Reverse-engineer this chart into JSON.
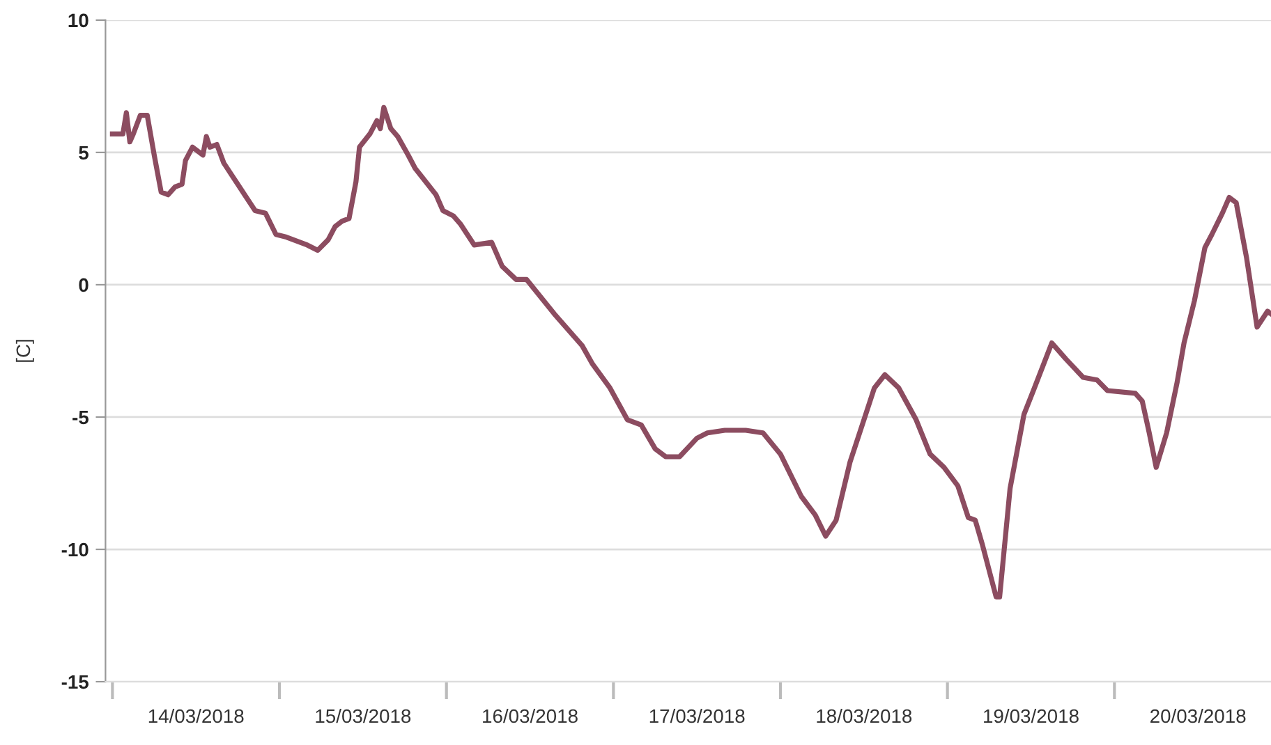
{
  "chart_data": {
    "type": "line",
    "ylabel": "[C]",
    "xlim": [
      "2018-03-13T23:00",
      "2018-03-20T22:30"
    ],
    "xticks": [
      {
        "value": "2018-03-14T00:00",
        "label": null
      },
      {
        "value": "2018-03-14T12:00",
        "label": "14/03/2018"
      },
      {
        "value": "2018-03-15T00:00",
        "label": null
      },
      {
        "value": "2018-03-15T12:00",
        "label": "15/03/2018"
      },
      {
        "value": "2018-03-16T00:00",
        "label": null
      },
      {
        "value": "2018-03-16T12:00",
        "label": "16/03/2018"
      },
      {
        "value": "2018-03-17T00:00",
        "label": null
      },
      {
        "value": "2018-03-17T12:00",
        "label": "17/03/2018"
      },
      {
        "value": "2018-03-18T00:00",
        "label": null
      },
      {
        "value": "2018-03-18T12:00",
        "label": "18/03/2018"
      },
      {
        "value": "2018-03-19T00:00",
        "label": null
      },
      {
        "value": "2018-03-19T12:00",
        "label": "19/03/2018"
      },
      {
        "value": "2018-03-20T00:00",
        "label": null
      },
      {
        "value": "2018-03-20T12:00",
        "label": "20/03/2018"
      }
    ],
    "ylim": [
      -15,
      10
    ],
    "yticks": [
      -15,
      -10,
      -5,
      0,
      5,
      10
    ],
    "grid": "y",
    "marker": "none",
    "line_style": "solid",
    "x": [
      "2018-03-14T00:00",
      "2018-03-14T01:30",
      "2018-03-14T02:00",
      "2018-03-14T02:30",
      "2018-03-14T03:00",
      "2018-03-14T04:00",
      "2018-03-14T05:00",
      "2018-03-14T06:00",
      "2018-03-14T07:00",
      "2018-03-14T08:00",
      "2018-03-14T09:00",
      "2018-03-14T10:00",
      "2018-03-14T10:30",
      "2018-03-14T11:30",
      "2018-03-14T13:00",
      "2018-03-14T13:30",
      "2018-03-14T14:00",
      "2018-03-14T15:00",
      "2018-03-14T16:00",
      "2018-03-14T18:00",
      "2018-03-14T19:00",
      "2018-03-14T20:30",
      "2018-03-14T22:00",
      "2018-03-14T23:30",
      "2018-03-15T01:00",
      "2018-03-15T03:00",
      "2018-03-15T04:00",
      "2018-03-15T05:30",
      "2018-03-15T07:00",
      "2018-03-15T08:00",
      "2018-03-15T09:00",
      "2018-03-15T10:00",
      "2018-03-15T11:00",
      "2018-03-15T11:30",
      "2018-03-15T13:00",
      "2018-03-15T14:00",
      "2018-03-15T14:30",
      "2018-03-15T15:00",
      "2018-03-15T16:00",
      "2018-03-15T17:00",
      "2018-03-15T18:30",
      "2018-03-15T19:30",
      "2018-03-15T21:00",
      "2018-03-15T22:30",
      "2018-03-15T23:30",
      "2018-03-16T01:00",
      "2018-03-16T02:00",
      "2018-03-16T04:00",
      "2018-03-16T06:30",
      "2018-03-16T08:00",
      "2018-03-16T10:00",
      "2018-03-16T11:30",
      "2018-03-16T15:30",
      "2018-03-16T19:30",
      "2018-03-16T21:00",
      "2018-03-16T23:30",
      "2018-03-17T02:00",
      "2018-03-17T04:00",
      "2018-03-17T06:00",
      "2018-03-17T07:30",
      "2018-03-17T09:30",
      "2018-03-17T12:00",
      "2018-03-17T13:30",
      "2018-03-17T16:00",
      "2018-03-17T19:00",
      "2018-03-17T21:30",
      "2018-03-18T00:00",
      "2018-03-18T03:00",
      "2018-03-18T05:00",
      "2018-03-18T06:30",
      "2018-03-18T08:00",
      "2018-03-18T10:00",
      "2018-03-18T12:00",
      "2018-03-18T13:30",
      "2018-03-18T15:00",
      "2018-03-18T17:00",
      "2018-03-18T19:30",
      "2018-03-18T21:30",
      "2018-03-18T23:30",
      "2018-03-19T01:30",
      "2018-03-19T03:00",
      "2018-03-19T04:00",
      "2018-03-19T05:00",
      "2018-03-19T07:00",
      "2018-03-19T07:30",
      "2018-03-19T09:00",
      "2018-03-19T11:00",
      "2018-03-19T12:30",
      "2018-03-19T15:00",
      "2018-03-19T17:00",
      "2018-03-19T19:30",
      "2018-03-19T21:30",
      "2018-03-19T23:00",
      "2018-03-20T03:00",
      "2018-03-20T04:00",
      "2018-03-20T05:00",
      "2018-03-20T06:00",
      "2018-03-20T07:30",
      "2018-03-20T09:00",
      "2018-03-20T10:00",
      "2018-03-20T11:30",
      "2018-03-20T13:00",
      "2018-03-20T14:00",
      "2018-03-20T15:30",
      "2018-03-20T16:30",
      "2018-03-20T17:30",
      "2018-03-20T19:00",
      "2018-03-20T20:30",
      "2018-03-20T22:00",
      "2018-03-20T22:30"
    ],
    "series": [
      {
        "color": "#8c4c60",
        "values": [
          5.7,
          5.7,
          6.5,
          5.4,
          5.7,
          6.4,
          6.4,
          4.9,
          3.5,
          3.4,
          3.7,
          3.8,
          4.7,
          5.2,
          4.9,
          5.6,
          5.2,
          5.3,
          4.6,
          3.8,
          3.4,
          2.8,
          2.7,
          1.9,
          1.8,
          1.6,
          1.5,
          1.3,
          1.7,
          2.2,
          2.4,
          2.5,
          3.9,
          5.2,
          5.7,
          6.2,
          5.9,
          6.7,
          5.9,
          5.6,
          4.9,
          4.4,
          3.9,
          3.4,
          2.8,
          2.6,
          2.3,
          1.5,
          1.6,
          0.7,
          0.2,
          0.2,
          -1.1,
          -2.3,
          -3.0,
          -3.9,
          -5.1,
          -5.3,
          -6.2,
          -6.5,
          -6.5,
          -5.8,
          -5.6,
          -5.5,
          -5.5,
          -5.6,
          -6.4,
          -8.0,
          -8.7,
          -9.5,
          -8.9,
          -6.7,
          -5.1,
          -3.9,
          -3.4,
          -3.9,
          -5.1,
          -6.4,
          -6.9,
          -7.6,
          -8.8,
          -8.9,
          -9.8,
          -11.8,
          -11.8,
          -7.7,
          -4.9,
          -3.9,
          -2.2,
          -2.8,
          -3.5,
          -3.6,
          -4.0,
          -4.1,
          -4.4,
          -5.6,
          -6.9,
          -5.6,
          -3.7,
          -2.2,
          -0.6,
          1.4,
          1.9,
          2.7,
          3.3,
          3.1,
          1.0,
          -1.6,
          -1.0,
          -1.1
        ]
      }
    ]
  }
}
